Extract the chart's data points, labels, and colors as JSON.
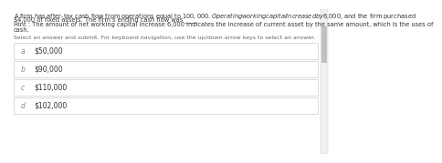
{
  "question_text_line1": "A firm has after-tax cash flow from operations equal to $100,000. Operating working capital increased by $6,000, and the firm purchased",
  "question_text_line2": "$4,000 of fixed assets. The firm’s ending cash flow was ____",
  "hint_line1": "Hint : The amount of net working capital increase 6,000 indicates the increase of current asset by the same amount, which is the uses of",
  "hint_line2": "cash.",
  "instruction": "Select an answer and submit. For keyboard navigation, use the up/down arrow keys to select an answer.",
  "options": [
    {
      "letter": "a",
      "text": "$50,000"
    },
    {
      "letter": "b",
      "text": "$90,000"
    },
    {
      "letter": "c",
      "text": "$110,000"
    },
    {
      "letter": "d",
      "text": "$102,000"
    }
  ],
  "bg_color": "#ffffff",
  "box_border_color": "#cccccc",
  "text_color": "#333333",
  "hint_color": "#333333",
  "instruction_color": "#666666",
  "option_letter_color": "#888888",
  "option_text_color": "#333333",
  "question_fontsize": 4.8,
  "hint_fontsize": 4.8,
  "instruction_fontsize": 4.5,
  "option_fontsize": 5.5,
  "letter_fontsize": 5.5,
  "scrollbar_color": "#cccccc",
  "scrollbar_thumb_color": "#aaaaaa"
}
